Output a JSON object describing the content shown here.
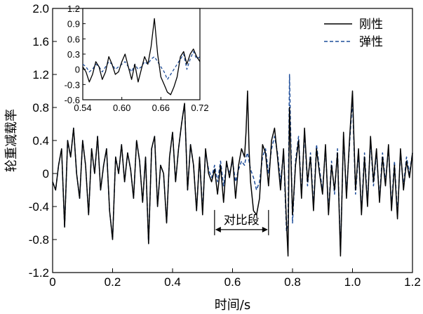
{
  "chart_data": {
    "type": "line",
    "xlabel": "时间/s",
    "ylabel": "轮重减载率",
    "xlim": [
      0,
      1.2
    ],
    "ylim": [
      -1.2,
      2.0
    ],
    "x_ticks": [
      "0",
      "0.2",
      "0.4",
      "0.6",
      "0.8",
      "1.0",
      "1.2"
    ],
    "y_ticks": [
      "2.0",
      "1.6",
      "1.2",
      "0.8",
      "0.4",
      "0",
      "-0.4",
      "-0.8",
      "-1.2"
    ],
    "grid": false,
    "legend_position": "top-right",
    "series": [
      {
        "name": "刚性",
        "color": "#000000",
        "style": "solid",
        "x": [
          0.0,
          0.01,
          0.02,
          0.03,
          0.04,
          0.05,
          0.06,
          0.07,
          0.08,
          0.09,
          0.1,
          0.11,
          0.12,
          0.13,
          0.14,
          0.15,
          0.16,
          0.17,
          0.18,
          0.19,
          0.2,
          0.21,
          0.22,
          0.23,
          0.24,
          0.25,
          0.26,
          0.27,
          0.28,
          0.29,
          0.3,
          0.31,
          0.32,
          0.33,
          0.34,
          0.35,
          0.36,
          0.37,
          0.38,
          0.39,
          0.4,
          0.41,
          0.42,
          0.43,
          0.44,
          0.45,
          0.46,
          0.47,
          0.48,
          0.49,
          0.5,
          0.51,
          0.52,
          0.53,
          0.54,
          0.55,
          0.56,
          0.57,
          0.58,
          0.59,
          0.6,
          0.61,
          0.62,
          0.63,
          0.64,
          0.645,
          0.65,
          0.655,
          0.66,
          0.67,
          0.68,
          0.69,
          0.7,
          0.71,
          0.72,
          0.73,
          0.74,
          0.75,
          0.76,
          0.77,
          0.78,
          0.785,
          0.79,
          0.8,
          0.81,
          0.82,
          0.83,
          0.84,
          0.85,
          0.86,
          0.87,
          0.88,
          0.89,
          0.9,
          0.91,
          0.92,
          0.93,
          0.94,
          0.95,
          0.96,
          0.97,
          0.98,
          0.99,
          1.0,
          1.01,
          1.02,
          1.03,
          1.04,
          1.05,
          1.06,
          1.07,
          1.08,
          1.09,
          1.1,
          1.11,
          1.12,
          1.13,
          1.14,
          1.15,
          1.16,
          1.17,
          1.18,
          1.19,
          1.2
        ],
        "y": [
          -0.1,
          -0.2,
          0.1,
          0.3,
          -0.65,
          0.4,
          0.2,
          0.55,
          0.0,
          -0.3,
          0.4,
          0.1,
          -0.5,
          0.3,
          0.0,
          0.45,
          -0.2,
          0.1,
          0.3,
          -0.45,
          -0.8,
          0.2,
          0.0,
          0.35,
          -0.1,
          0.25,
          0.05,
          -0.3,
          0.4,
          0.15,
          -0.35,
          0.2,
          -0.85,
          0.3,
          0.45,
          -0.4,
          0.1,
          0.0,
          -0.6,
          0.2,
          0.5,
          -0.1,
          0.3,
          0.6,
          0.85,
          -0.2,
          0.35,
          0.1,
          -0.45,
          0.2,
          -0.5,
          0.3,
          0.0,
          -0.1,
          0.05,
          -0.25,
          0.1,
          -0.35,
          0.15,
          -0.05,
          0.2,
          -0.3,
          0.1,
          0.3,
          0.2,
          0.5,
          1.0,
          0.3,
          -0.1,
          -0.45,
          -0.5,
          -0.3,
          0.35,
          0.25,
          -0.15,
          0.4,
          0.55,
          0.2,
          -0.2,
          0.3,
          -0.6,
          -1.0,
          0.8,
          -0.5,
          0.1,
          0.4,
          -0.3,
          0.55,
          -0.1,
          0.2,
          -0.45,
          0.3,
          0.0,
          -0.25,
          0.35,
          -0.5,
          0.1,
          -0.2,
          0.25,
          -1.0,
          0.5,
          -0.3,
          0.4,
          1.0,
          -0.2,
          0.3,
          -0.5,
          0.2,
          -0.4,
          0.45,
          -0.1,
          0.3,
          -0.35,
          0.2,
          -0.15,
          0.35,
          -0.45,
          0.1,
          -0.55,
          0.3,
          -0.2,
          0.15,
          -0.05,
          0.25
        ]
      },
      {
        "name": "弹性",
        "color": "#1f4e9a",
        "style": "dashed",
        "x": [
          0.0,
          0.01,
          0.02,
          0.03,
          0.04,
          0.05,
          0.06,
          0.07,
          0.08,
          0.09,
          0.1,
          0.11,
          0.12,
          0.13,
          0.14,
          0.15,
          0.16,
          0.17,
          0.18,
          0.19,
          0.2,
          0.21,
          0.22,
          0.23,
          0.24,
          0.25,
          0.26,
          0.27,
          0.28,
          0.29,
          0.3,
          0.31,
          0.32,
          0.33,
          0.34,
          0.35,
          0.36,
          0.37,
          0.38,
          0.39,
          0.4,
          0.41,
          0.42,
          0.43,
          0.44,
          0.45,
          0.46,
          0.47,
          0.48,
          0.49,
          0.5,
          0.51,
          0.52,
          0.53,
          0.54,
          0.55,
          0.56,
          0.57,
          0.58,
          0.59,
          0.6,
          0.61,
          0.62,
          0.63,
          0.64,
          0.645,
          0.65,
          0.655,
          0.66,
          0.67,
          0.68,
          0.69,
          0.7,
          0.71,
          0.72,
          0.73,
          0.74,
          0.75,
          0.76,
          0.77,
          0.78,
          0.785,
          0.79,
          0.8,
          0.81,
          0.82,
          0.83,
          0.84,
          0.85,
          0.86,
          0.87,
          0.88,
          0.89,
          0.9,
          0.91,
          0.92,
          0.93,
          0.94,
          0.95,
          0.96,
          0.97,
          0.98,
          0.99,
          1.0,
          1.01,
          1.02,
          1.03,
          1.04,
          1.05,
          1.06,
          1.07,
          1.08,
          1.09,
          1.1,
          1.11,
          1.12,
          1.13,
          1.14,
          1.15,
          1.16,
          1.17,
          1.18,
          1.19,
          1.2
        ],
        "y": [
          -0.1,
          -0.2,
          0.1,
          0.3,
          -0.65,
          0.4,
          0.2,
          0.55,
          0.0,
          -0.3,
          0.4,
          0.1,
          -0.5,
          0.3,
          0.0,
          0.45,
          -0.2,
          0.1,
          0.3,
          -0.45,
          -0.8,
          0.2,
          0.0,
          0.35,
          -0.1,
          0.25,
          0.05,
          -0.3,
          0.4,
          0.15,
          -0.35,
          0.2,
          -0.85,
          0.3,
          0.45,
          -0.4,
          0.1,
          0.0,
          -0.6,
          0.2,
          0.5,
          -0.1,
          0.3,
          0.6,
          0.85,
          -0.2,
          0.35,
          0.1,
          -0.45,
          0.2,
          -0.45,
          0.25,
          0.05,
          -0.05,
          0.1,
          -0.1,
          0.15,
          -0.15,
          0.1,
          0.0,
          0.15,
          -0.1,
          0.05,
          0.15,
          0.1,
          0.2,
          0.25,
          0.15,
          0.05,
          -0.05,
          -0.2,
          -0.1,
          0.2,
          0.3,
          0.0,
          0.3,
          0.45,
          0.25,
          -0.1,
          0.25,
          -0.7,
          -0.6,
          1.2,
          -0.6,
          0.15,
          0.45,
          -0.25,
          0.5,
          -0.15,
          0.25,
          -0.4,
          0.35,
          0.05,
          -0.2,
          0.3,
          -0.45,
          0.15,
          -0.25,
          0.3,
          -0.95,
          0.45,
          -0.25,
          0.35,
          0.9,
          -0.25,
          0.25,
          -0.45,
          0.25,
          -0.35,
          0.4,
          -0.15,
          0.25,
          -0.3,
          0.25,
          -0.1,
          0.3,
          -0.4,
          0.15,
          -0.5,
          0.25,
          -0.15,
          0.2,
          0.0,
          0.25
        ]
      }
    ],
    "annotations": [
      {
        "text": "对比段",
        "x_start": 0.54,
        "x_end": 0.72,
        "y": -0.68
      }
    ],
    "inset": {
      "xlim": [
        0.54,
        0.72
      ],
      "ylim": [
        -0.6,
        1.2
      ],
      "x_ticks": [
        "0.54",
        "0.60",
        "0.66",
        "0.72"
      ],
      "y_ticks": [
        "1.2",
        "0.9",
        "0.6",
        "0.3",
        "0",
        "-0.3",
        "-0.6"
      ],
      "series": [
        {
          "name": "刚性",
          "color": "#000000",
          "style": "solid",
          "x": [
            0.54,
            0.545,
            0.55,
            0.555,
            0.56,
            0.565,
            0.57,
            0.575,
            0.58,
            0.585,
            0.59,
            0.595,
            0.6,
            0.605,
            0.61,
            0.615,
            0.62,
            0.625,
            0.63,
            0.635,
            0.64,
            0.645,
            0.65,
            0.655,
            0.66,
            0.665,
            0.67,
            0.675,
            0.68,
            0.685,
            0.69,
            0.695,
            0.7,
            0.705,
            0.71,
            0.715,
            0.72
          ],
          "y": [
            0.05,
            -0.05,
            -0.25,
            -0.1,
            0.15,
            0.05,
            -0.2,
            -0.05,
            0.25,
            0.1,
            -0.1,
            -0.05,
            0.15,
            0.3,
            0.05,
            -0.2,
            0.1,
            -0.25,
            0.0,
            0.25,
            0.1,
            0.45,
            1.0,
            0.3,
            -0.15,
            -0.3,
            -0.45,
            -0.5,
            -0.35,
            -0.15,
            0.25,
            0.35,
            0.1,
            0.3,
            0.4,
            0.25,
            0.15
          ]
        },
        {
          "name": "弹性",
          "color": "#1f4e9a",
          "style": "dashed",
          "x": [
            0.54,
            0.545,
            0.55,
            0.555,
            0.56,
            0.565,
            0.57,
            0.575,
            0.58,
            0.585,
            0.59,
            0.595,
            0.6,
            0.605,
            0.61,
            0.615,
            0.62,
            0.625,
            0.63,
            0.635,
            0.64,
            0.645,
            0.65,
            0.655,
            0.66,
            0.665,
            0.67,
            0.675,
            0.68,
            0.685,
            0.69,
            0.695,
            0.7,
            0.705,
            0.71,
            0.715,
            0.72
          ],
          "y": [
            0.1,
            0.05,
            -0.05,
            0.0,
            0.1,
            0.05,
            -0.05,
            0.05,
            0.15,
            0.1,
            0.0,
            0.05,
            0.1,
            0.15,
            0.05,
            -0.05,
            0.1,
            0.0,
            0.05,
            0.15,
            0.1,
            0.2,
            0.25,
            0.15,
            0.05,
            -0.05,
            -0.2,
            -0.1,
            0.0,
            0.1,
            0.2,
            0.3,
            0.0,
            0.2,
            0.35,
            0.2,
            0.25
          ]
        }
      ]
    }
  }
}
